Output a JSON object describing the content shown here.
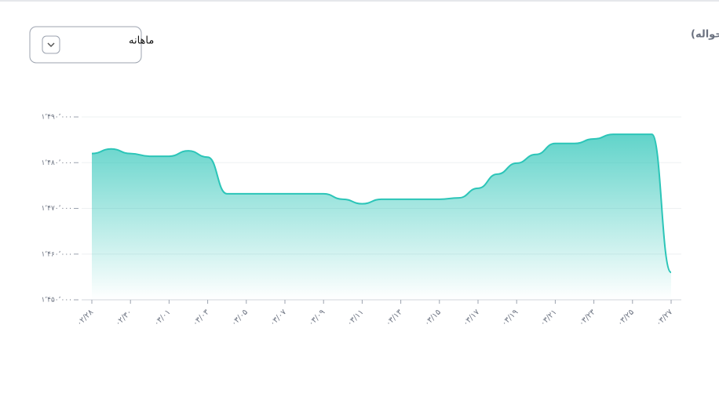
{
  "dropdown": {
    "selected": "ماهانه"
  },
  "chart_data": {
    "type": "area",
    "title": "نمودار تغییرات دلار آمریکا ( حواله)",
    "categories": [
      "۰۲/۲۸",
      null,
      "۰۲/۳۰",
      null,
      "۰۳/۰۱",
      null,
      "۰۳/۰۳",
      null,
      "۰۳/۰۵",
      null,
      "۰۳/۰۷",
      null,
      "۰۳/۰۹",
      null,
      "۰۳/۱۱",
      null,
      "۰۳/۱۳",
      null,
      "۰۳/۱۵",
      null,
      "۰۳/۱۷",
      null,
      "۰۳/۱۹",
      null,
      "۰۳/۲۱",
      null,
      "۰۳/۲۳",
      null,
      "۰۳/۲۵",
      null,
      "۰۳/۲۷"
    ],
    "values": [
      1482000,
      1483000,
      1482000,
      1481400,
      1481400,
      1482600,
      1481200,
      1473200,
      1473200,
      1473200,
      1473200,
      1473200,
      1473200,
      1472000,
      1471000,
      1472000,
      1472000,
      1472000,
      1472000,
      1472300,
      1474400,
      1477500,
      1479900,
      1481800,
      1484200,
      1484200,
      1485200,
      1486200,
      1486200,
      1486200,
      1456000
    ],
    "color": "#2cc5b8",
    "ylim": [
      1450000,
      1490000
    ],
    "yticks": [
      {
        "value": 1450000,
        "label": "۱٬۴۵۰٬۰۰۰"
      },
      {
        "value": 1460000,
        "label": "۱٬۴۶۰٬۰۰۰"
      },
      {
        "value": 1470000,
        "label": "۱٬۴۷۰٬۰۰۰"
      },
      {
        "value": 1480000,
        "label": "۱٬۴۸۰٬۰۰۰"
      },
      {
        "value": 1490000,
        "label": "۱٬۴۹۰٬۰۰۰"
      }
    ],
    "grid": true
  }
}
